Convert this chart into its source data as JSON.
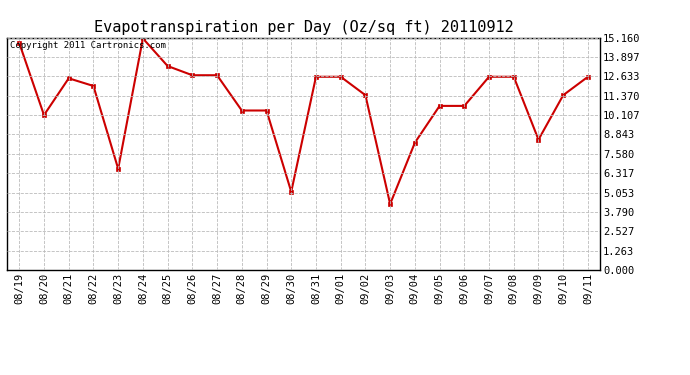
{
  "title": "Evapotranspiration per Day (Oz/sq ft) 20110912",
  "copyright_text": "Copyright 2011 Cartronics.com",
  "x_labels": [
    "08/19",
    "08/20",
    "08/21",
    "08/22",
    "08/23",
    "08/24",
    "08/25",
    "08/26",
    "08/27",
    "08/28",
    "08/29",
    "08/30",
    "08/31",
    "09/01",
    "09/02",
    "09/03",
    "09/04",
    "09/05",
    "09/06",
    "09/07",
    "09/08",
    "09/09",
    "09/10",
    "09/11"
  ],
  "y_values": [
    14.8,
    10.1,
    12.5,
    12.0,
    6.6,
    15.1,
    13.3,
    12.7,
    12.7,
    10.4,
    10.4,
    5.1,
    12.6,
    12.6,
    11.4,
    4.3,
    8.3,
    10.7,
    10.7,
    12.6,
    12.6,
    8.5,
    11.4,
    12.6
  ],
  "ylim": [
    0.0,
    15.16
  ],
  "yticks": [
    0.0,
    1.263,
    2.527,
    3.79,
    5.053,
    6.317,
    7.58,
    8.843,
    10.107,
    11.37,
    12.633,
    13.897,
    15.16
  ],
  "ytick_labels": [
    "0.000",
    "1.263",
    "2.527",
    "3.790",
    "5.053",
    "6.317",
    "7.580",
    "8.843",
    "10.107",
    "11.370",
    "12.633",
    "13.897",
    "15.160"
  ],
  "line_color": "#cc0000",
  "marker": "s",
  "marker_size": 3,
  "background_color": "#ffffff",
  "grid_color": "#bbbbbb",
  "title_fontsize": 11,
  "tick_fontsize": 7.5,
  "copyright_fontsize": 6.5
}
